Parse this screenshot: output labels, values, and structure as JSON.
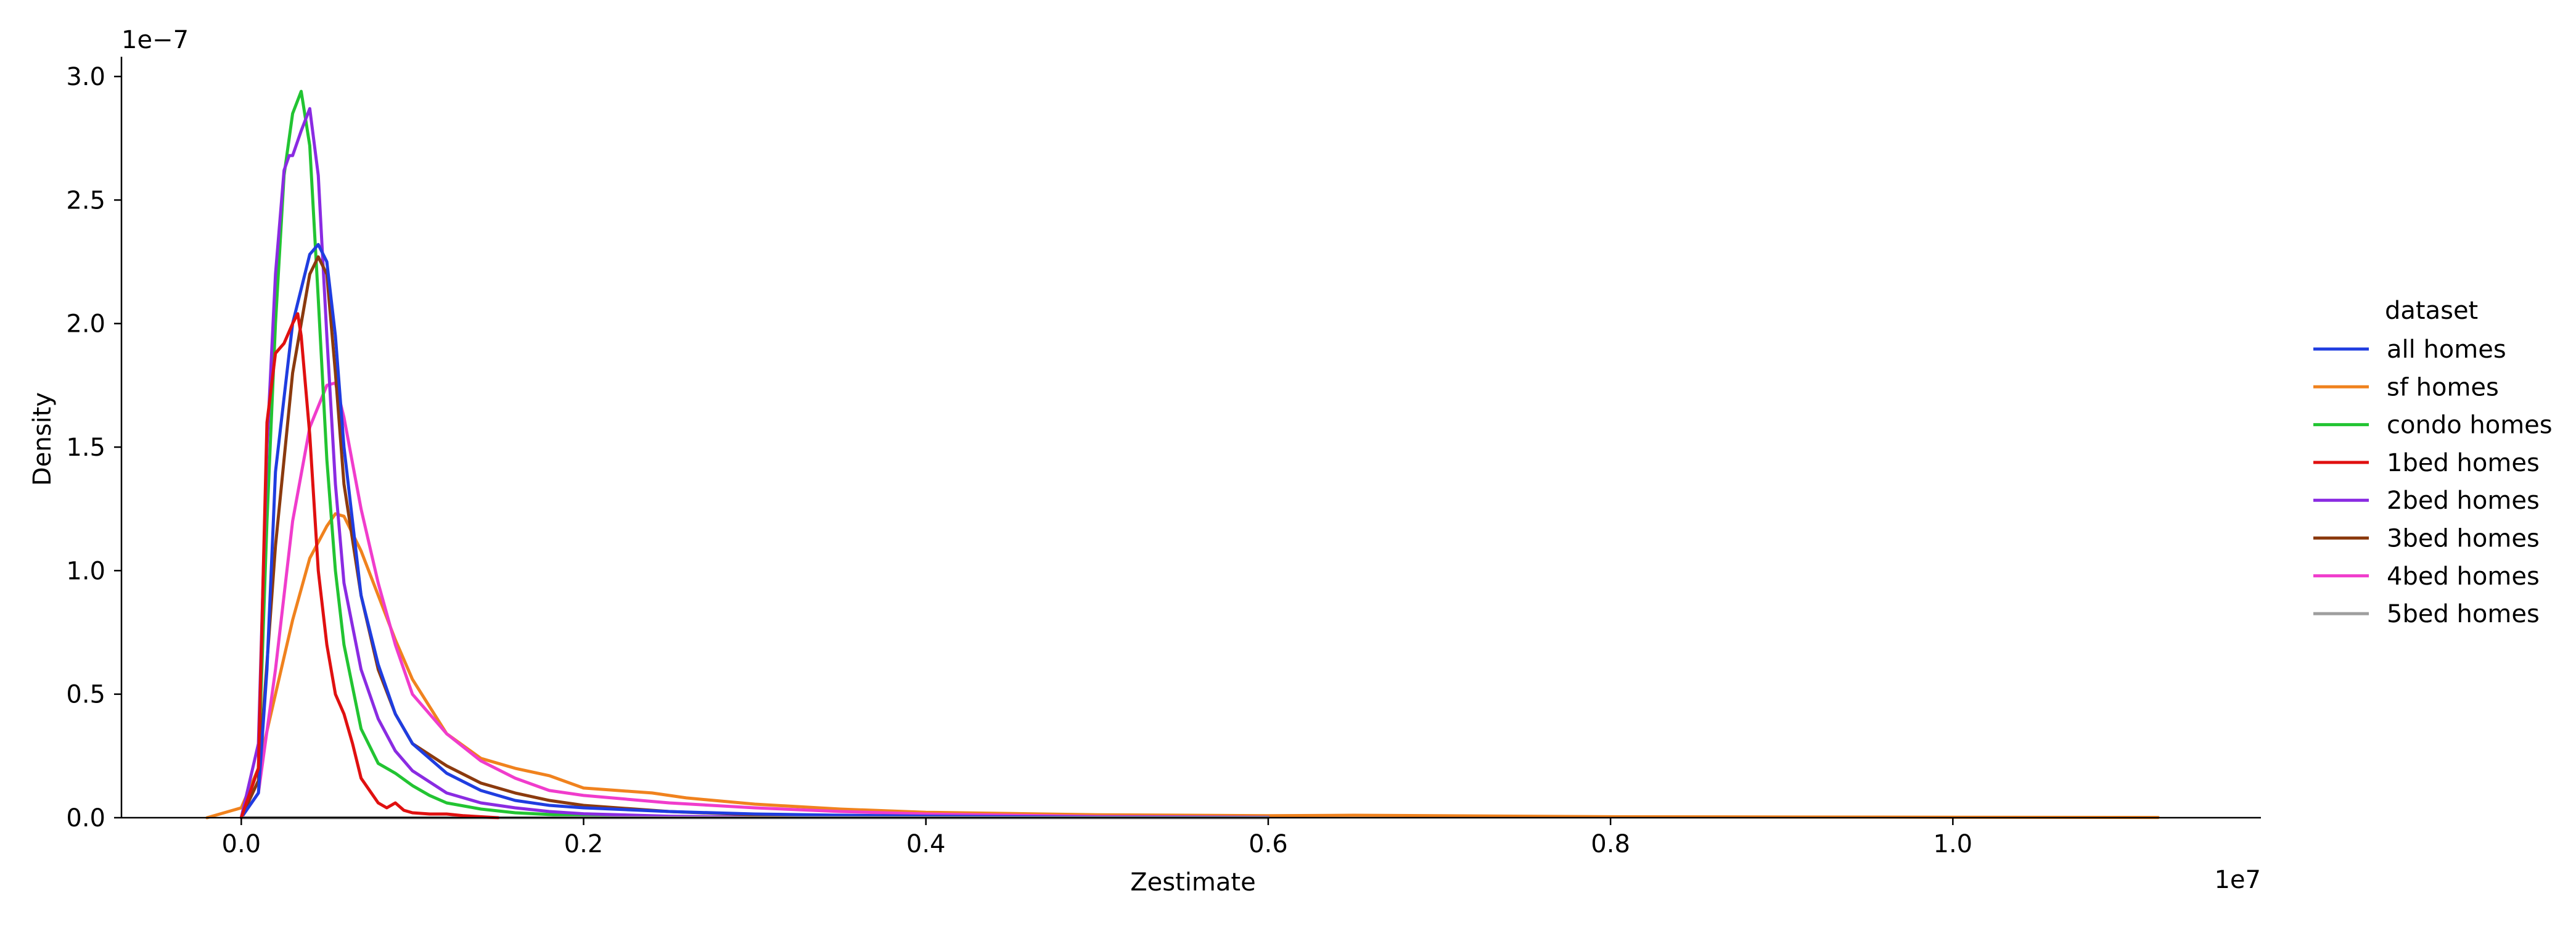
{
  "chart_data": {
    "type": "line",
    "title": "",
    "xlabel": "Zestimate",
    "ylabel": "Density",
    "x_scale_label": "1e7",
    "y_scale_label": "1e−7",
    "xlim": [
      -700000,
      11800000
    ],
    "ylim": [
      0,
      3.08e-07
    ],
    "x_ticks": [
      0,
      2000000,
      4000000,
      6000000,
      8000000,
      10000000
    ],
    "x_tick_labels": [
      "0.0",
      "0.2",
      "0.4",
      "0.6",
      "0.8",
      "1.0"
    ],
    "y_ticks": [
      0,
      5e-08,
      1e-07,
      1.5e-07,
      2e-07,
      2.5e-07,
      3e-07
    ],
    "y_tick_labels": [
      "0.0",
      "0.5",
      "1.0",
      "1.5",
      "2.0",
      "2.5",
      "3.0"
    ],
    "grid": false,
    "legend": {
      "title": "dataset",
      "placement": "right"
    },
    "series": [
      {
        "name": "sf homes",
        "color": "#f0821e",
        "x": [
          -200000,
          0,
          100000,
          200000,
          300000,
          400000,
          500000,
          550000,
          600000,
          700000,
          800000,
          900000,
          1000000,
          1200000,
          1400000,
          1600000,
          1800000,
          2000000,
          2200000,
          2400000,
          2600000,
          3000000,
          3500000,
          4000000,
          5000000,
          6000000,
          6500000,
          8000000,
          10000000,
          11200000
        ],
        "y": [
          0,
          4e-09,
          2e-08,
          5e-08,
          8e-08,
          1.05e-07,
          1.18e-07,
          1.23e-07,
          1.22e-07,
          1.08e-07,
          9e-08,
          7.2e-08,
          5.6e-08,
          3.4e-08,
          2.4e-08,
          2e-08,
          1.7e-08,
          1.2e-08,
          1.1e-08,
          1e-08,
          8e-09,
          5.5e-09,
          3.5e-09,
          2.2e-09,
          1.2e-09,
          8e-10,
          1e-09,
          4e-10,
          2e-10,
          1e-10
        ]
      },
      {
        "name": "4bed homes",
        "color": "#f03ccc",
        "x": [
          0,
          100000,
          200000,
          300000,
          400000,
          500000,
          550000,
          600000,
          700000,
          800000,
          900000,
          1000000,
          1200000,
          1400000,
          1600000,
          1800000,
          2000000,
          2500000,
          3000000,
          3500000,
          4000000,
          5000000,
          6000000
        ],
        "y": [
          0,
          1e-08,
          6e-08,
          1.2e-07,
          1.58e-07,
          1.75e-07,
          1.76e-07,
          1.62e-07,
          1.25e-07,
          9.5e-08,
          7e-08,
          5e-08,
          3.4e-08,
          2.3e-08,
          1.6e-08,
          1.1e-08,
          9e-09,
          6e-09,
          4e-09,
          2.5e-09,
          1.5e-09,
          5e-10,
          2e-10
        ]
      },
      {
        "name": "condo homes",
        "color": "#22c432",
        "x": [
          0,
          100000,
          150000,
          200000,
          250000,
          300000,
          350000,
          400000,
          450000,
          500000,
          550000,
          600000,
          700000,
          800000,
          900000,
          1000000,
          1100000,
          1200000,
          1400000,
          1600000,
          1800000,
          2000000,
          2500000,
          3000000
        ],
        "y": [
          0,
          2e-08,
          1.2e-07,
          2e-07,
          2.6e-07,
          2.85e-07,
          2.94e-07,
          2.72e-07,
          2.1e-07,
          1.45e-07,
          1e-07,
          7e-08,
          3.6e-08,
          2.2e-08,
          1.8e-08,
          1.3e-08,
          9e-09,
          6e-09,
          3.5e-09,
          2e-09,
          1.3e-09,
          8e-10,
          3e-10,
          1e-10
        ]
      },
      {
        "name": "2bed homes",
        "color": "#8a2be2",
        "x": [
          0,
          100000,
          150000,
          200000,
          250000,
          280000,
          300000,
          350000,
          400000,
          450000,
          500000,
          550000,
          600000,
          700000,
          800000,
          900000,
          1000000,
          1200000,
          1400000,
          1600000,
          1800000,
          2000000,
          2500000,
          3000000
        ],
        "y": [
          0,
          3e-08,
          1.5e-07,
          2.2e-07,
          2.62e-07,
          2.68e-07,
          2.68e-07,
          2.78e-07,
          2.87e-07,
          2.6e-07,
          1.95e-07,
          1.35e-07,
          9.5e-08,
          6e-08,
          4e-08,
          2.7e-08,
          1.9e-08,
          1e-08,
          6e-09,
          4e-09,
          2.5e-09,
          1.6e-09,
          6e-10,
          2e-10
        ]
      },
      {
        "name": "3bed homes",
        "color": "#8b3a0e",
        "x": [
          0,
          100000,
          200000,
          300000,
          400000,
          450000,
          500000,
          550000,
          600000,
          700000,
          800000,
          900000,
          1000000,
          1200000,
          1400000,
          1600000,
          1800000,
          2000000,
          2500000,
          3000000,
          4000000
        ],
        "y": [
          0,
          1.5e-08,
          1.1e-07,
          1.8e-07,
          2.2e-07,
          2.27e-07,
          2.2e-07,
          1.8e-07,
          1.35e-07,
          9e-08,
          6e-08,
          4.2e-08,
          3e-08,
          2.1e-08,
          1.4e-08,
          1e-08,
          7e-09,
          5e-09,
          2.5e-09,
          1.2e-09,
          3e-10
        ]
      },
      {
        "name": "all homes",
        "color": "#1f3de0",
        "x": [
          0,
          100000,
          150000,
          200000,
          300000,
          400000,
          450000,
          500000,
          550000,
          600000,
          700000,
          800000,
          900000,
          1000000,
          1200000,
          1400000,
          1600000,
          1800000,
          2000000,
          2500000,
          3000000,
          3500000,
          4000000,
          5000000,
          6000000
        ],
        "y": [
          0,
          1e-08,
          6e-08,
          1.4e-07,
          2e-07,
          2.28e-07,
          2.32e-07,
          2.25e-07,
          1.95e-07,
          1.5e-07,
          9e-08,
          6.2e-08,
          4.2e-08,
          3e-08,
          1.8e-08,
          1.1e-08,
          7e-09,
          5e-09,
          4e-09,
          2.5e-09,
          1.5e-09,
          1e-09,
          6e-10,
          2e-10,
          1e-10
        ]
      },
      {
        "name": "5bed homes",
        "color": "#9e9e9e",
        "x": [
          0,
          6000000
        ],
        "y": [
          0,
          0
        ]
      },
      {
        "name": "1bed homes",
        "color": "#e01010",
        "x": [
          0,
          100000,
          150000,
          200000,
          250000,
          300000,
          330000,
          350000,
          400000,
          450000,
          500000,
          550000,
          600000,
          650000,
          700000,
          750000,
          800000,
          850000,
          900000,
          950000,
          1000000,
          1100000,
          1200000,
          1300000,
          1500000
        ],
        "y": [
          0,
          2e-08,
          1.6e-07,
          1.88e-07,
          1.92e-07,
          2e-07,
          2.04e-07,
          1.95e-07,
          1.55e-07,
          1e-07,
          7e-08,
          5e-08,
          4.2e-08,
          3e-08,
          1.6e-08,
          1.1e-08,
          6e-09,
          4e-09,
          6e-09,
          3e-09,
          2e-09,
          1.5e-09,
          1.5e-09,
          8e-10,
          0
        ]
      }
    ],
    "legend_order": [
      "all homes",
      "sf homes",
      "condo homes",
      "1bed homes",
      "2bed homes",
      "3bed homes",
      "4bed homes",
      "5bed homes"
    ]
  }
}
